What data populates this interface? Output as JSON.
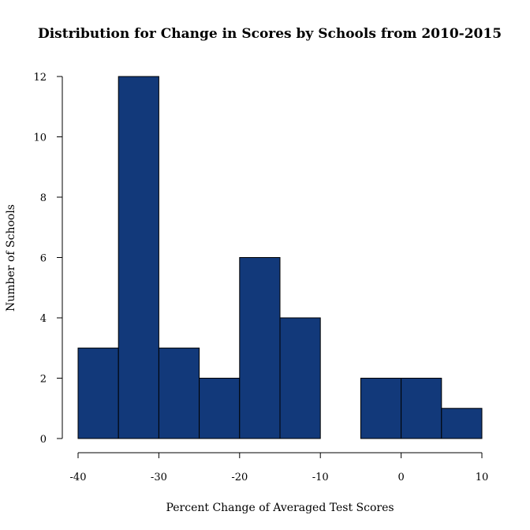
{
  "chart_data": {
    "type": "bar",
    "title": "Distribution for Change in Scores by Schools from 2010-2015",
    "xlabel": "Percent Change of Averaged Test Scores",
    "ylabel": "Number of Schools",
    "bins": [
      {
        "start": -40,
        "end": -35,
        "count": 3
      },
      {
        "start": -35,
        "end": -30,
        "count": 12
      },
      {
        "start": -30,
        "end": -25,
        "count": 3
      },
      {
        "start": -25,
        "end": -20,
        "count": 2
      },
      {
        "start": -20,
        "end": -15,
        "count": 6
      },
      {
        "start": -15,
        "end": -10,
        "count": 4
      },
      {
        "start": -10,
        "end": -5,
        "count": 0
      },
      {
        "start": -5,
        "end": 0,
        "count": 2
      },
      {
        "start": 0,
        "end": 5,
        "count": 2
      },
      {
        "start": 5,
        "end": 10,
        "count": 1
      }
    ],
    "xlim": [
      -40,
      10
    ],
    "ylim": [
      0,
      12
    ],
    "xticks": [
      "-40",
      "-30",
      "-20",
      "-10",
      "0",
      "10"
    ],
    "yticks": [
      "0",
      "2",
      "4",
      "6",
      "8",
      "10",
      "12"
    ],
    "bar_color": "#12397a",
    "grid": false
  }
}
